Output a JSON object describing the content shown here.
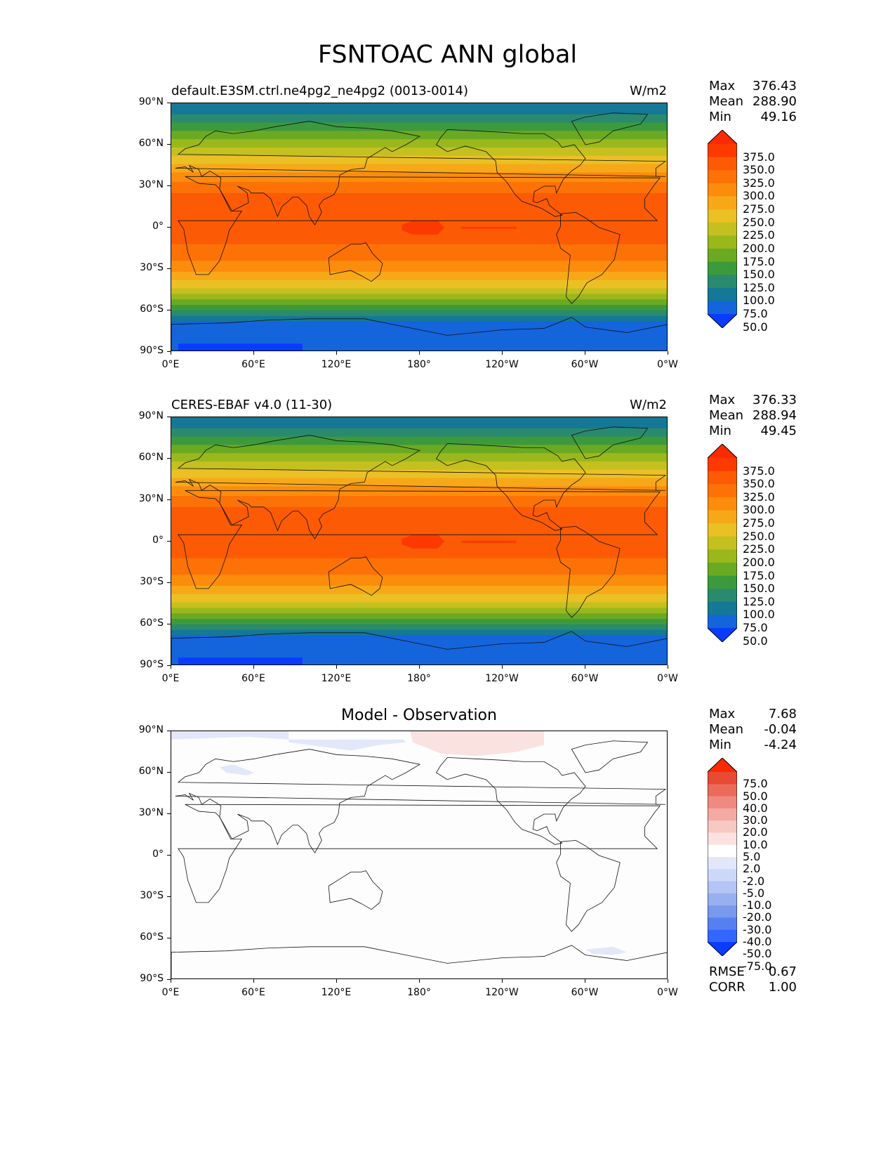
{
  "title": "FSNTOAC ANN global",
  "x_ticks": [
    "0°E",
    "60°E",
    "120°E",
    "180°",
    "120°W",
    "60°W",
    "0°W"
  ],
  "y_ticks": [
    "90°N",
    "60°N",
    "30°N",
    "0°",
    "30°S",
    "60°S",
    "90°S"
  ],
  "panels": [
    {
      "title": "default.E3SM.ctrl.ne4pg2_ne4pg2 (0013-0014)",
      "units": "W/m2",
      "stats": {
        "max_label": "Max",
        "max": "376.43",
        "mean_label": "Mean",
        "mean": "288.90",
        "min_label": "Min",
        "min": "49.16"
      },
      "colorbar": [
        "375.0",
        "350.0",
        "325.0",
        "300.0",
        "275.0",
        "250.0",
        "225.0",
        "200.0",
        "175.0",
        "150.0",
        "125.0",
        "100.0",
        "75.0",
        "50.0"
      ]
    },
    {
      "title": "CERES-EBAF v4.0 (11-30)",
      "units": "W/m2",
      "stats": {
        "max_label": "Max",
        "max": "376.33",
        "mean_label": "Mean",
        "mean": "288.94",
        "min_label": "Min",
        "min": "49.45"
      },
      "colorbar": [
        "375.0",
        "350.0",
        "325.0",
        "300.0",
        "275.0",
        "250.0",
        "225.0",
        "200.0",
        "175.0",
        "150.0",
        "125.0",
        "100.0",
        "75.0",
        "50.0"
      ]
    },
    {
      "title": "Model - Observation",
      "stats": {
        "max_label": "Max",
        "max": "7.68",
        "mean_label": "Mean",
        "mean": "-0.04",
        "min_label": "Min",
        "min": "-4.24"
      },
      "colorbar": [
        "75.0",
        "50.0",
        "40.0",
        "30.0",
        "20.0",
        "10.0",
        "5.0",
        "2.0",
        "-2.0",
        "-5.0",
        "-10.0",
        "-20.0",
        "-30.0",
        "-40.0",
        "-50.0",
        "-75.0"
      ],
      "metrics": {
        "rmse_label": "RMSE",
        "rmse": "0.67",
        "corr_label": "CORR",
        "corr": "1.00"
      }
    }
  ],
  "colors": {
    "field_scale": [
      "#0a3cff",
      "#1464dc",
      "#147896",
      "#2a8a6e",
      "#3c9a3c",
      "#6aaa22",
      "#9ab81c",
      "#c4c020",
      "#eac024",
      "#f7a818",
      "#fc8c0c",
      "#fc7206",
      "#fc5a04",
      "#fc3a00",
      "#fc2a00"
    ],
    "diff_scale": [
      "#0a3cff",
      "#3366ff",
      "#5580f0",
      "#7799ee",
      "#99b0f0",
      "#b4c4f4",
      "#ccd8f8",
      "#e2e8fa",
      "#ffffff",
      "#fae2e0",
      "#f8c8c2",
      "#f4aaa2",
      "#f08a80",
      "#ec6a5a",
      "#e84a34",
      "#fc2a00"
    ]
  }
}
